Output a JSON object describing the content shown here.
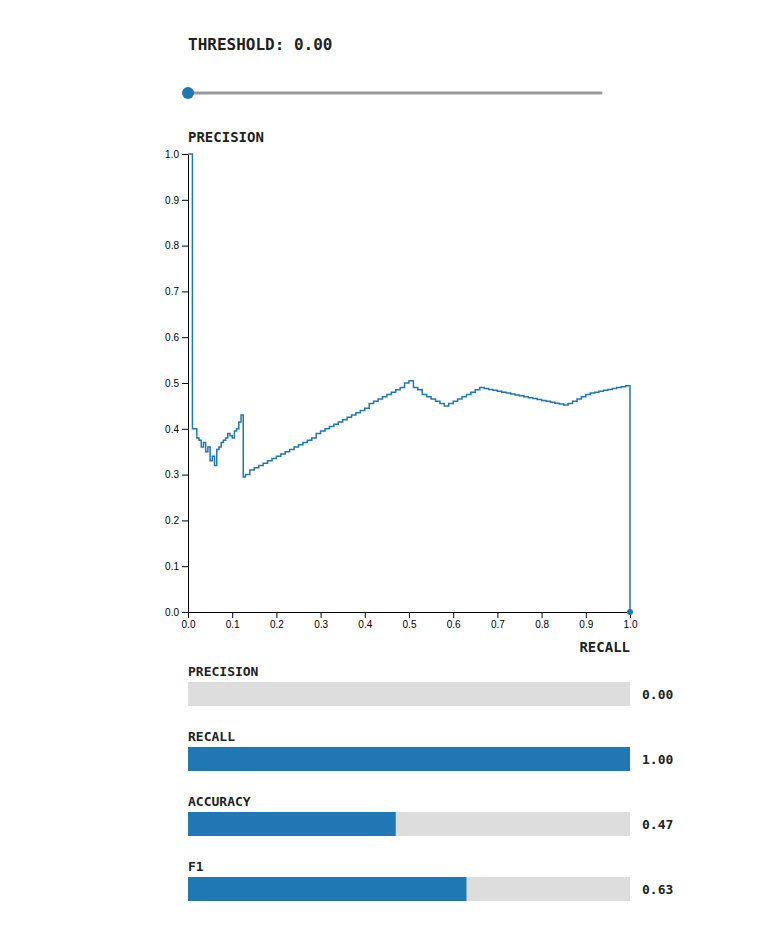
{
  "chart_data": [
    {
      "type": "line",
      "title": "THRESHOLD: 0.00",
      "ylabel": "PRECISION",
      "xlabel": "RECALL",
      "line_style": "step",
      "grid": false,
      "x": [
        0.0,
        0.01,
        0.02,
        0.025,
        0.03,
        0.035,
        0.04,
        0.045,
        0.05,
        0.055,
        0.06,
        0.065,
        0.07,
        0.075,
        0.08,
        0.085,
        0.09,
        0.095,
        0.1,
        0.105,
        0.11,
        0.115,
        0.12,
        0.125,
        0.13,
        0.14,
        0.15,
        0.16,
        0.17,
        0.18,
        0.19,
        0.2,
        0.21,
        0.22,
        0.23,
        0.24,
        0.25,
        0.26,
        0.27,
        0.28,
        0.29,
        0.3,
        0.31,
        0.32,
        0.33,
        0.34,
        0.35,
        0.36,
        0.37,
        0.38,
        0.39,
        0.4,
        0.41,
        0.42,
        0.43,
        0.44,
        0.45,
        0.46,
        0.47,
        0.48,
        0.49,
        0.5,
        0.51,
        0.52,
        0.53,
        0.54,
        0.55,
        0.56,
        0.57,
        0.58,
        0.59,
        0.6,
        0.61,
        0.62,
        0.63,
        0.64,
        0.65,
        0.66,
        0.67,
        0.68,
        0.69,
        0.7,
        0.71,
        0.72,
        0.73,
        0.74,
        0.75,
        0.76,
        0.77,
        0.78,
        0.79,
        0.8,
        0.81,
        0.82,
        0.83,
        0.84,
        0.85,
        0.86,
        0.87,
        0.88,
        0.89,
        0.9,
        0.91,
        0.92,
        0.93,
        0.94,
        0.95,
        0.96,
        0.97,
        0.98,
        0.99,
        1.0,
        1.0
      ],
      "values": [
        1.0,
        0.4,
        0.38,
        0.375,
        0.36,
        0.37,
        0.35,
        0.36,
        0.33,
        0.34,
        0.32,
        0.355,
        0.36,
        0.37,
        0.375,
        0.38,
        0.39,
        0.385,
        0.38,
        0.395,
        0.4,
        0.415,
        0.43,
        0.295,
        0.3,
        0.31,
        0.315,
        0.32,
        0.325,
        0.33,
        0.335,
        0.34,
        0.345,
        0.35,
        0.355,
        0.36,
        0.365,
        0.37,
        0.375,
        0.38,
        0.39,
        0.395,
        0.4,
        0.405,
        0.41,
        0.415,
        0.42,
        0.425,
        0.43,
        0.435,
        0.44,
        0.445,
        0.455,
        0.46,
        0.465,
        0.47,
        0.475,
        0.48,
        0.485,
        0.49,
        0.5,
        0.505,
        0.49,
        0.485,
        0.475,
        0.47,
        0.465,
        0.46,
        0.455,
        0.45,
        0.455,
        0.46,
        0.465,
        0.47,
        0.475,
        0.48,
        0.485,
        0.49,
        0.488,
        0.486,
        0.484,
        0.482,
        0.48,
        0.478,
        0.476,
        0.474,
        0.472,
        0.47,
        0.468,
        0.466,
        0.464,
        0.462,
        0.46,
        0.458,
        0.456,
        0.454,
        0.452,
        0.455,
        0.46,
        0.465,
        0.47,
        0.475,
        0.478,
        0.48,
        0.482,
        0.484,
        0.486,
        0.488,
        0.49,
        0.492,
        0.494,
        0.495,
        0.0
      ],
      "xlim": [
        0,
        1
      ],
      "ylim": [
        0,
        1
      ],
      "xticks": [
        {
          "value": 0,
          "label": "0.0"
        },
        0.1,
        0.2,
        0.3,
        0.4,
        0.5,
        0.6,
        0.7,
        0.8,
        0.9,
        {
          "value": 1,
          "label": "1.0"
        }
      ],
      "yticks": [
        {
          "value": 0,
          "label": "0.0"
        },
        0.1,
        0.2,
        0.3,
        0.4,
        0.5,
        0.6,
        0.7,
        0.8,
        0.9,
        {
          "value": 1,
          "label": "1.0"
        }
      ]
    },
    {
      "type": "bar",
      "orientation": "horizontal",
      "categories": [
        "PRECISION",
        "RECALL",
        "ACCURACY",
        "F1"
      ],
      "values": [
        0.0,
        1.0,
        0.47,
        0.63
      ],
      "value_labels": [
        "0.00",
        "1.00",
        "0.47",
        "0.63"
      ],
      "data_labels": true,
      "tick_labels": "y",
      "xlim": [
        0,
        1
      ]
    }
  ]
}
